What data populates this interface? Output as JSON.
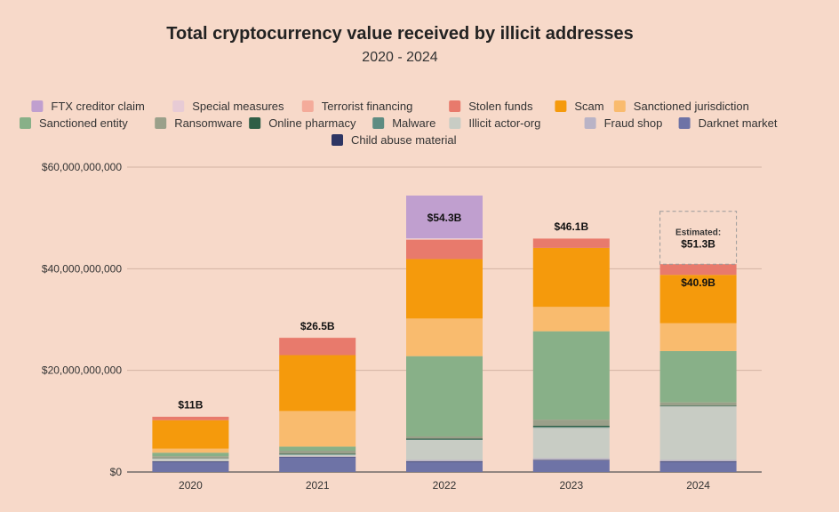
{
  "chart_data": {
    "type": "bar",
    "stacked": true,
    "title": "Total cryptocurrency value received by illicit addresses",
    "subtitle": "2020 - 2024",
    "categories": [
      "2020",
      "2021",
      "2022",
      "2023",
      "2024"
    ],
    "ylim": [
      0,
      60000000000
    ],
    "yticks": [
      "$0",
      "$20,000,000,000",
      "$40,000,000,000",
      "$60,000,000,000"
    ],
    "ytick_values": [
      0,
      20000000000,
      40000000000,
      60000000000
    ],
    "grid": true,
    "legend_position": "top",
    "series": [
      {
        "name": "Darknet market",
        "color": "#6e73a6",
        "values": [
          2000000000,
          2900000000,
          2000000000,
          2300000000,
          2000000000
        ]
      },
      {
        "name": "Child abuse material",
        "color": "#2e3563",
        "values": [
          100000000,
          100000000,
          100000000,
          100000000,
          100000000
        ]
      },
      {
        "name": "Fraud shop",
        "color": "#b9b3c6",
        "values": [
          50000000,
          100000000,
          300000000,
          300000000,
          300000000
        ]
      },
      {
        "name": "Illicit actor-org",
        "color": "#c8ccc4",
        "values": [
          500000000,
          300000000,
          3900000000,
          6000000000,
          10500000000
        ]
      },
      {
        "name": "Malware",
        "color": "#5e8c82",
        "values": [
          50000000,
          100000000,
          100000000,
          200000000,
          100000000
        ]
      },
      {
        "name": "Online pharmacy",
        "color": "#2f5e46",
        "values": [
          50000000,
          100000000,
          200000000,
          200000000,
          100000000
        ]
      },
      {
        "name": "Ransomware",
        "color": "#9aa08a",
        "values": [
          350000000,
          600000000,
          400000000,
          1200000000,
          600000000
        ]
      },
      {
        "name": "Sanctioned entity",
        "color": "#88b088",
        "values": [
          700000000,
          800000000,
          15800000000,
          17400000000,
          10100000000
        ]
      },
      {
        "name": "Sanctioned jurisdiction",
        "color": "#f9bb6e",
        "values": [
          800000000,
          7000000000,
          7400000000,
          4800000000,
          5500000000
        ]
      },
      {
        "name": "Scam",
        "color": "#f59a0c",
        "values": [
          5600000000,
          11000000000,
          11700000000,
          11600000000,
          9500000000
        ]
      },
      {
        "name": "Stolen funds",
        "color": "#e87a6c",
        "values": [
          650000000,
          3400000000,
          3800000000,
          1800000000,
          2100000000
        ]
      },
      {
        "name": "Terrorist financing",
        "color": "#f4ab9a",
        "values": [
          50000000,
          50000000,
          100000000,
          100000000,
          0
        ]
      },
      {
        "name": "Special measures",
        "color": "#e7cbd5",
        "values": [
          0,
          0,
          200000000,
          0,
          0
        ]
      },
      {
        "name": "FTX creditor claim",
        "color": "#c09fcf",
        "values": [
          0,
          0,
          8400000000,
          0,
          0
        ]
      }
    ],
    "legend_order": [
      "FTX creditor claim",
      "Special measures",
      "Terrorist financing",
      "Stolen funds",
      "Scam",
      "Sanctioned jurisdiction",
      "Sanctioned entity",
      "Ransomware",
      "Online pharmacy",
      "Malware",
      "Illicit actor-org",
      "Fraud shop",
      "Darknet market",
      "Child abuse material"
    ],
    "bar_labels": [
      "$11B",
      "$26.5B",
      "$54.3B",
      "$46.1B",
      "$40.9B"
    ],
    "estimated": {
      "category": "2024",
      "label": "Estimated:",
      "value_label": "$51.3B",
      "value": 51300000000
    }
  }
}
